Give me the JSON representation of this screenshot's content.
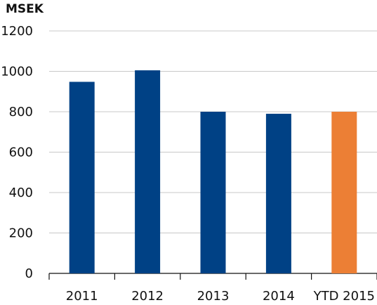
{
  "chart_data": {
    "type": "bar",
    "ylabel": "MSEK",
    "categories": [
      "2011",
      "2012",
      "2013",
      "2014",
      "YTD 2015"
    ],
    "values": [
      948,
      1005,
      800,
      790,
      800
    ],
    "colors": [
      "#004185",
      "#004185",
      "#004185",
      "#004185",
      "#ec7f35"
    ],
    "ylim": [
      0,
      1200
    ],
    "yticks": [
      0,
      200,
      400,
      600,
      800,
      1000,
      1200
    ],
    "grid": true,
    "legend": "none"
  }
}
